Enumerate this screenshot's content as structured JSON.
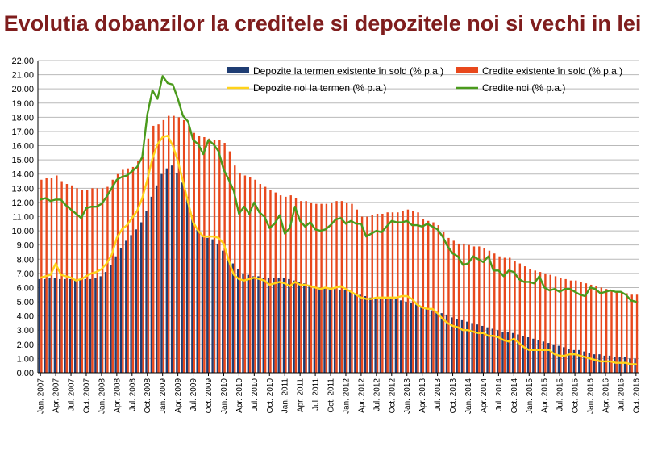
{
  "title": "Evolutia dobanzilor la creditele si depozitele noi si vechi in lei",
  "colors": {
    "title": "#7f1d1d",
    "depozite_existente": "#1f3d73",
    "credite_existente": "#e8481c",
    "depozite_noi": "#ffd21a",
    "credite_noi": "#4a9a1c"
  },
  "chart_data": {
    "type": "bar",
    "title": "Evolutia dobanzilor la creditele si depozitele noi si vechi in lei",
    "ylim": [
      0,
      22
    ],
    "ystep": 1,
    "y_tick_format": "2 decimals",
    "grid": "horizontal",
    "legend_position": "top-right",
    "categories": [
      "Jan. 2007",
      "Feb. 2007",
      "Mar. 2007",
      "Apr. 2007",
      "May 2007",
      "Jun. 2007",
      "Jul. 2007",
      "Aug. 2007",
      "Sep. 2007",
      "Oct. 2007",
      "Nov. 2007",
      "Dec. 2007",
      "Jan. 2008",
      "Feb. 2008",
      "Mar. 2008",
      "Apr. 2008",
      "May 2008",
      "Jun. 2008",
      "Jul. 2008",
      "Aug. 2008",
      "Sep. 2008",
      "Oct. 2008",
      "Nov. 2008",
      "Dec. 2008",
      "Jan. 2009",
      "Feb. 2009",
      "Mar. 2009",
      "Apr. 2009",
      "May 2009",
      "Jun. 2009",
      "Jul. 2009",
      "Aug. 2009",
      "Sep. 2009",
      "Oct. 2009",
      "Nov. 2009",
      "Dec. 2009",
      "Jan. 2010",
      "Feb. 2010",
      "Mar. 2010",
      "Apr. 2010",
      "May 2010",
      "Jun. 2010",
      "Jul. 2010",
      "Aug. 2010",
      "Sep. 2010",
      "Oct. 2010",
      "Nov. 2010",
      "Dec. 2010",
      "Jan. 2011",
      "Feb. 2011",
      "Mar. 2011",
      "Apr. 2011",
      "May 2011",
      "Jun. 2011",
      "Jul. 2011",
      "Aug. 2011",
      "Sep. 2011",
      "Oct. 2011",
      "Nov. 2011",
      "Dec. 2011",
      "Jan. 2012",
      "Feb. 2012",
      "Mar. 2012",
      "Apr. 2012",
      "May 2012",
      "Jun. 2012",
      "Jul. 2012",
      "Aug. 2012",
      "Sep. 2012",
      "Oct. 2012",
      "Nov. 2012",
      "Dec. 2012",
      "Jan. 2013",
      "Feb. 2013",
      "Mar. 2013",
      "Apr. 2013",
      "May 2013",
      "Jun. 2013",
      "Jul. 2013",
      "Aug. 2013",
      "Sep. 2013",
      "Oct. 2013",
      "Nov. 2013",
      "Dec. 2013",
      "Jan. 2014",
      "Feb. 2014",
      "Mar. 2014",
      "Apr. 2014",
      "May 2014",
      "Jun. 2014",
      "Jul. 2014",
      "Aug. 2014",
      "Sep. 2014",
      "Oct. 2014",
      "Nov. 2014",
      "Dec. 2014",
      "Jan. 2015",
      "Feb. 2015",
      "Mar. 2015",
      "Apr. 2015",
      "May 2015",
      "Jun. 2015",
      "Jul. 2015",
      "Aug. 2015",
      "Sep. 2015",
      "Oct. 2015",
      "Nov. 2015",
      "Dec. 2015",
      "Jan. 2016",
      "Feb. 2016",
      "Mar. 2016",
      "Apr. 2016",
      "May 2016",
      "Jun. 2016",
      "Jul. 2016",
      "Aug. 2016",
      "Sep. 2016",
      "Oct. 2016"
    ],
    "x_tick_labels": [
      "Jan. 2007",
      "Apr. 2007",
      "Jul. 2007",
      "Oct. 2007",
      "Jan. 2008",
      "Apr. 2008",
      "Jul. 2008",
      "Oct. 2008",
      "Jan. 2009",
      "Apr. 2009",
      "Jul. 2009",
      "Oct. 2009",
      "Jan. 2010",
      "Apr. 2010",
      "Jul. 2010",
      "Oct. 2010",
      "Jan. 2011",
      "Apr. 2011",
      "Jul. 2011",
      "Oct. 2011",
      "Jan. 2012",
      "Apr. 2012",
      "Jul. 2012",
      "Oct. 2012",
      "Jan. 2013",
      "Apr. 2013",
      "Jul. 2013",
      "Oct. 2013",
      "Jan. 2014",
      "Apr. 2014",
      "Jul. 2014",
      "Oct. 2014",
      "Jan. 2015",
      "Apr. 2015",
      "Jul. 2015",
      "Oct. 2015",
      "Jan. 2016",
      "Apr. 2016",
      "Jul. 2016",
      "Oct. 2016"
    ],
    "series": [
      {
        "name": "Depozite la termen existente în sold (% p.a.)",
        "kind": "bar",
        "color": "#1f3d73",
        "values": [
          6.6,
          6.6,
          6.7,
          6.7,
          6.6,
          6.6,
          6.6,
          6.6,
          6.6,
          6.6,
          6.6,
          6.7,
          6.8,
          7.1,
          7.6,
          8.2,
          8.8,
          9.3,
          9.7,
          10.1,
          10.6,
          11.4,
          12.4,
          13.2,
          14.0,
          14.4,
          14.6,
          14.1,
          13.4,
          12.4,
          11.1,
          10.1,
          9.6,
          9.5,
          9.4,
          9.1,
          8.6,
          8.1,
          7.7,
          7.3,
          7.0,
          6.9,
          6.8,
          6.8,
          6.7,
          6.7,
          6.7,
          6.7,
          6.7,
          6.6,
          6.5,
          6.4,
          6.3,
          6.2,
          6.1,
          6.0,
          6.0,
          5.9,
          5.9,
          5.8,
          5.8,
          5.7,
          5.6,
          5.5,
          5.4,
          5.3,
          5.3,
          5.2,
          5.2,
          5.2,
          5.2,
          5.1,
          5.0,
          4.9,
          4.8,
          4.6,
          4.5,
          4.4,
          4.3,
          4.2,
          4.1,
          3.9,
          3.8,
          3.7,
          3.6,
          3.5,
          3.4,
          3.3,
          3.2,
          3.1,
          3.0,
          2.9,
          2.9,
          2.8,
          2.7,
          2.6,
          2.5,
          2.4,
          2.3,
          2.2,
          2.1,
          2.0,
          1.9,
          1.8,
          1.7,
          1.6,
          1.6,
          1.5,
          1.4,
          1.3,
          1.3,
          1.2,
          1.2,
          1.1,
          1.1,
          1.1,
          1.0,
          1.0
        ]
      },
      {
        "name": "Credite existente în sold (% p.a.)",
        "kind": "bar",
        "color": "#e8481c",
        "values": [
          13.6,
          13.7,
          13.7,
          13.9,
          13.5,
          13.3,
          13.2,
          13.0,
          12.9,
          12.9,
          13.0,
          13.0,
          13.0,
          13.1,
          13.6,
          14.0,
          14.3,
          14.4,
          14.5,
          14.9,
          15.2,
          16.5,
          17.4,
          17.5,
          17.8,
          18.1,
          18.1,
          18.0,
          17.8,
          17.4,
          16.9,
          16.7,
          16.6,
          16.5,
          16.4,
          16.4,
          16.2,
          15.6,
          14.6,
          14.1,
          13.9,
          13.8,
          13.6,
          13.3,
          13.1,
          12.9,
          12.7,
          12.5,
          12.4,
          12.5,
          12.3,
          12.1,
          12.1,
          12.0,
          11.9,
          11.9,
          11.9,
          12.0,
          12.1,
          12.1,
          12.0,
          11.9,
          11.5,
          11.0,
          11.0,
          11.1,
          11.2,
          11.2,
          11.3,
          11.3,
          11.3,
          11.4,
          11.5,
          11.4,
          11.3,
          10.8,
          10.7,
          10.6,
          10.4,
          9.9,
          9.5,
          9.3,
          9.1,
          9.1,
          9.0,
          8.9,
          8.9,
          8.8,
          8.6,
          8.4,
          8.2,
          8.1,
          8.1,
          7.9,
          7.7,
          7.5,
          7.3,
          7.2,
          7.1,
          7.0,
          6.9,
          6.8,
          6.7,
          6.6,
          6.5,
          6.5,
          6.4,
          6.3,
          6.2,
          6.1,
          6.0,
          5.9,
          5.8,
          5.7,
          5.7,
          5.6,
          5.5,
          5.5
        ]
      },
      {
        "name": "Depozite noi la termen (% p.a.)",
        "kind": "line",
        "color": "#ffd21a",
        "values": [
          6.7,
          6.8,
          6.9,
          7.7,
          6.9,
          6.8,
          6.7,
          6.5,
          6.6,
          6.8,
          7.0,
          7.1,
          7.3,
          7.7,
          8.3,
          9.5,
          10.1,
          10.4,
          10.9,
          11.4,
          12.3,
          13.6,
          15.1,
          16.1,
          16.6,
          16.7,
          16.0,
          14.9,
          13.5,
          12.0,
          10.6,
          10.0,
          9.6,
          9.6,
          9.6,
          9.5,
          9.1,
          7.9,
          6.9,
          6.6,
          6.5,
          6.6,
          6.7,
          6.6,
          6.5,
          6.2,
          6.3,
          6.4,
          6.3,
          6.1,
          6.4,
          6.2,
          6.2,
          6.1,
          6.0,
          5.9,
          6.0,
          5.9,
          6.0,
          6.1,
          5.9,
          5.7,
          5.5,
          5.3,
          5.2,
          5.2,
          5.3,
          5.3,
          5.3,
          5.3,
          5.3,
          5.4,
          5.4,
          5.2,
          4.8,
          4.6,
          4.5,
          4.5,
          4.2,
          3.8,
          3.5,
          3.3,
          3.2,
          3.0,
          3.0,
          2.9,
          2.8,
          2.8,
          2.6,
          2.6,
          2.5,
          2.3,
          2.2,
          2.4,
          2.1,
          1.8,
          1.6,
          1.6,
          1.6,
          1.6,
          1.6,
          1.3,
          1.2,
          1.2,
          1.3,
          1.3,
          1.2,
          1.1,
          1.0,
          0.9,
          0.8,
          0.8,
          0.8,
          0.7,
          0.7,
          0.7,
          0.6,
          0.6
        ]
      },
      {
        "name": "Credite noi (% p.a.)",
        "kind": "line",
        "color": "#4a9a1c",
        "values": [
          12.2,
          12.3,
          12.1,
          12.2,
          12.2,
          11.8,
          11.5,
          11.2,
          10.9,
          11.6,
          11.7,
          11.7,
          11.9,
          12.4,
          13.0,
          13.6,
          13.8,
          13.9,
          14.2,
          14.5,
          15.2,
          18.2,
          19.9,
          19.3,
          20.9,
          20.4,
          20.3,
          19.3,
          18.1,
          17.7,
          16.4,
          16.1,
          15.4,
          16.4,
          16.1,
          15.6,
          14.3,
          13.6,
          12.8,
          11.2,
          11.7,
          11.2,
          12.0,
          11.3,
          11.0,
          10.2,
          10.5,
          11.1,
          9.8,
          10.2,
          11.7,
          10.7,
          10.3,
          10.6,
          10.1,
          10.0,
          10.1,
          10.4,
          10.8,
          10.9,
          10.5,
          10.7,
          10.5,
          10.5,
          9.6,
          9.8,
          10.0,
          9.9,
          10.3,
          10.7,
          10.6,
          10.6,
          10.7,
          10.4,
          10.4,
          10.3,
          10.5,
          10.3,
          10.1,
          9.6,
          8.9,
          8.4,
          8.2,
          7.6,
          7.7,
          8.2,
          8.0,
          7.8,
          8.2,
          7.2,
          7.2,
          6.8,
          7.2,
          7.1,
          6.6,
          6.4,
          6.4,
          6.3,
          6.8,
          6.0,
          5.8,
          5.9,
          5.7,
          5.9,
          5.9,
          5.7,
          5.5,
          5.4,
          6.0,
          5.9,
          5.6,
          5.7,
          5.8,
          5.7,
          5.7,
          5.5,
          5.1,
          5.0
        ]
      }
    ]
  }
}
